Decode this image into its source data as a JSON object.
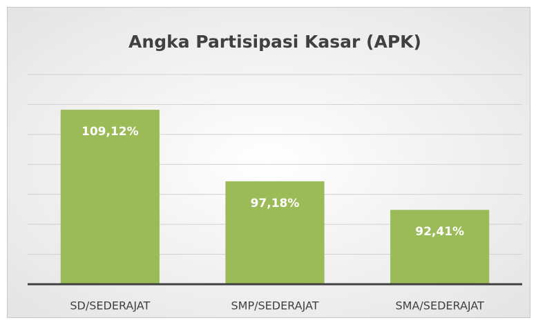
{
  "chart_data": {
    "type": "bar",
    "title": "Angka Partisipasi Kasar (APK)",
    "categories": [
      "SD/SEDERAJAT",
      "SMP/SEDERAJAT",
      "SMA/SEDERAJAT"
    ],
    "values": [
      109.12,
      97.18,
      92.41
    ],
    "value_labels": [
      "109,12%",
      "97,18%",
      "92,41%"
    ],
    "color": "#9bbb59",
    "ylim": [
      80,
      115
    ],
    "yticks": [
      80,
      85,
      90,
      95,
      100,
      105,
      110,
      115
    ],
    "grid": true
  }
}
